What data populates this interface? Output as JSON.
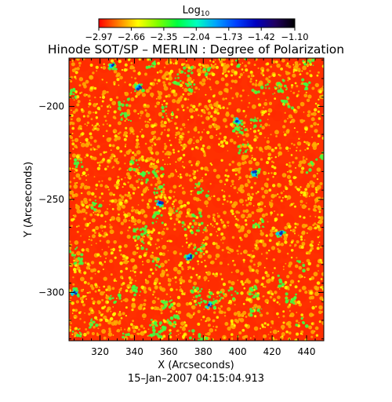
{
  "chart_data": {
    "type": "heatmap",
    "title": "Hinode SOT/SP – MERLIN : Degree of Polarization",
    "subtitle": "15–Jan–2007 04:15:04.913",
    "xlabel": "X (Arcseconds)",
    "ylabel": "Y (Arcseconds)",
    "xlim": [
      302,
      450
    ],
    "ylim": [
      -326,
      -174
    ],
    "x_ticks": [
      320,
      340,
      360,
      380,
      400,
      420,
      440
    ],
    "y_ticks": [
      -300,
      -250,
      -200
    ],
    "x_tick_labels": [
      "320",
      "340",
      "360",
      "380",
      "400",
      "420",
      "440"
    ],
    "y_tick_labels": [
      "−300",
      "−250",
      "−200"
    ],
    "colorbar": {
      "label_base": "Log",
      "label_sub": "10",
      "range": [
        -2.97,
        -1.1
      ],
      "ticks": [
        -2.97,
        -2.66,
        -2.35,
        -2.04,
        -1.73,
        -1.42,
        -1.1
      ],
      "tick_labels": [
        "−2.97",
        "−2.66",
        "−2.35",
        "−2.04",
        "−1.73",
        "−1.42",
        "−1.10"
      ],
      "colormap": [
        "#ff0000",
        "#ff8000",
        "#ffff00",
        "#80ff00",
        "#00ff40",
        "#00ffc0",
        "#00a0ff",
        "#0040ff",
        "#0000c0",
        "#200060",
        "#000000"
      ]
    },
    "grid": false,
    "field_description_colors": {
      "dominant": "#ff2a00",
      "secondary": "#ffb000",
      "network": "#ffff00",
      "enhanced": "#40ff40",
      "strong": "#00c8ff",
      "peak": "#0030c0"
    }
  }
}
